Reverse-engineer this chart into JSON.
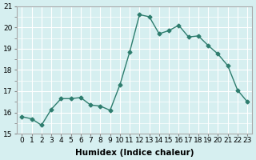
{
  "x": [
    0,
    1,
    2,
    3,
    4,
    5,
    6,
    7,
    8,
    9,
    10,
    11,
    12,
    13,
    14,
    15,
    16,
    17,
    18,
    19,
    20,
    21,
    22,
    23
  ],
  "y": [
    15.8,
    15.7,
    15.4,
    16.15,
    16.65,
    16.65,
    16.7,
    16.35,
    16.3,
    16.1,
    17.3,
    18.85,
    20.6,
    20.5,
    19.7,
    19.85,
    20.1,
    19.55,
    19.6,
    19.15,
    18.75,
    18.2,
    17.05,
    16.5
  ],
  "line_color": "#2e7d6e",
  "marker": "D",
  "markersize": 2.5,
  "linewidth": 1.0,
  "xlabel": "Humidex (Indice chaleur)",
  "xlim": [
    -0.5,
    23.5
  ],
  "ylim": [
    15,
    21
  ],
  "yticks": [
    15,
    16,
    17,
    18,
    19,
    20,
    21
  ],
  "xticks": [
    0,
    1,
    2,
    3,
    4,
    5,
    6,
    7,
    8,
    9,
    10,
    11,
    12,
    13,
    14,
    15,
    16,
    17,
    18,
    19,
    20,
    21,
    22,
    23
  ],
  "bg_color": "#d6eff0",
  "grid_color": "#ffffff",
  "tick_label_fontsize": 6.5,
  "xlabel_fontsize": 7.5
}
